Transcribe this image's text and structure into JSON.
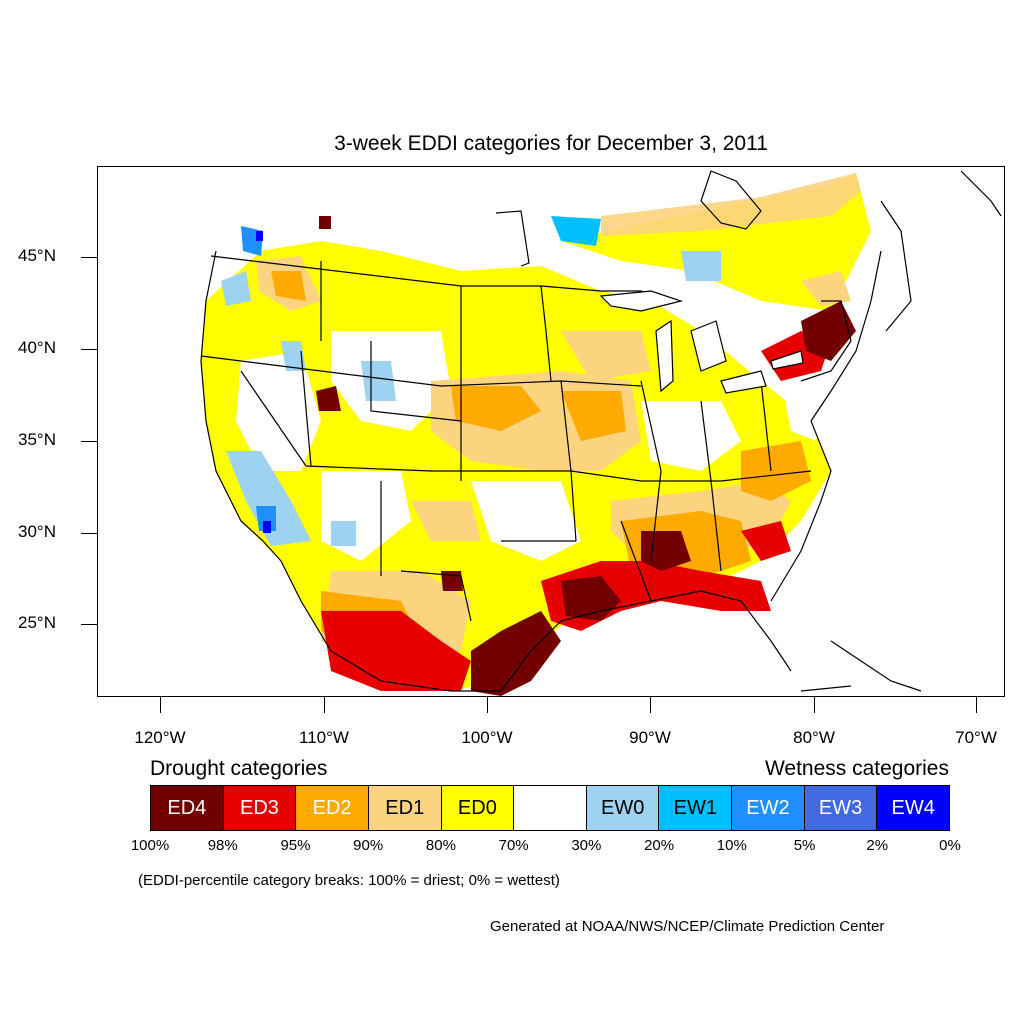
{
  "title": "3-week EDDI categories for December 3, 2011",
  "map": {
    "lat_labels": [
      "45°N",
      "40°N",
      "35°N",
      "30°N",
      "25°N"
    ],
    "lon_labels": [
      "120°W",
      "110°W",
      "100°W",
      "90°W",
      "80°W",
      "70°W"
    ],
    "colors": {
      "ED4": "#730000",
      "ED3": "#e60000",
      "ED2": "#ffaa00",
      "ED1": "#fcd37f",
      "ED0": "#ffff00",
      "neutral": "#ffffff",
      "EW0": "#9dd2f0",
      "EW1": "#00bfff",
      "EW2": "#1e90ff",
      "EW3": "#4169e1",
      "EW4": "#0000ff"
    }
  },
  "legend": {
    "drought_heading": "Drought categories",
    "wetness_heading": "Wetness categories",
    "cells": [
      {
        "label": "ED4",
        "color": "#730000",
        "text_color": "#ffffff"
      },
      {
        "label": "ED3",
        "color": "#e60000",
        "text_color": "#ffffff"
      },
      {
        "label": "ED2",
        "color": "#ffaa00",
        "text_color": "#ffffff"
      },
      {
        "label": "ED1",
        "color": "#fcd37f",
        "text_color": "#000000"
      },
      {
        "label": "ED0",
        "color": "#ffff00",
        "text_color": "#000000"
      },
      {
        "label": "",
        "color": "#ffffff",
        "text_color": "#000000"
      },
      {
        "label": "EW0",
        "color": "#9dd2f0",
        "text_color": "#000000"
      },
      {
        "label": "EW1",
        "color": "#00bfff",
        "text_color": "#000000"
      },
      {
        "label": "EW2",
        "color": "#1e90ff",
        "text_color": "#ffffff"
      },
      {
        "label": "EW3",
        "color": "#4169e1",
        "text_color": "#ffffff"
      },
      {
        "label": "EW4",
        "color": "#0000ff",
        "text_color": "#ffffff"
      }
    ],
    "percentiles": [
      "100%",
      "98%",
      "95%",
      "90%",
      "80%",
      "70%",
      "30%",
      "20%",
      "10%",
      "5%",
      "2%",
      "0%"
    ]
  },
  "note": "(EDDI-percentile category breaks: 100% = driest; 0% = wettest)",
  "credit": "Generated at NOAA/NWS/NCEP/Climate Prediction Center"
}
